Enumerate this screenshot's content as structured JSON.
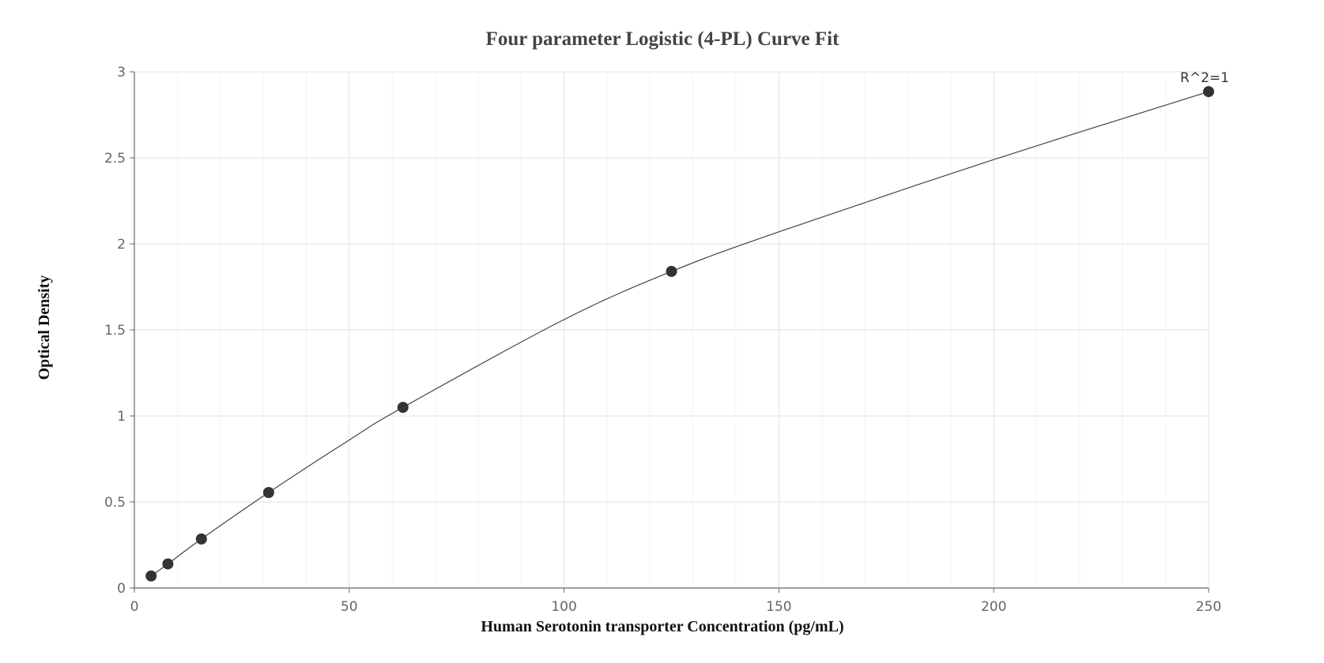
{
  "chart_data": {
    "type": "scatter",
    "title": "Four parameter Logistic (4-PL) Curve Fit",
    "xlabel": "Human Serotonin transporter Concentration (pg/mL)",
    "ylabel": "Optical Density",
    "xlim": [
      0,
      250
    ],
    "ylim": [
      0,
      3
    ],
    "x_ticks": [
      0,
      50,
      100,
      150,
      200,
      250
    ],
    "y_ticks": [
      0,
      0.5,
      1,
      1.5,
      2,
      2.5,
      3
    ],
    "x_tick_labels": [
      "0",
      "50",
      "100",
      "150",
      "200",
      "250"
    ],
    "y_tick_labels": [
      "0",
      "0.5",
      "1",
      "1.5",
      "2",
      "2.5",
      "3"
    ],
    "grid": true,
    "legend": "none",
    "points": {
      "x": [
        3.9,
        7.8,
        15.6,
        31.25,
        62.5,
        125,
        250
      ],
      "y": [
        0.07,
        0.14,
        0.285,
        0.555,
        1.05,
        1.84,
        2.885
      ]
    },
    "fit_curve": {
      "model": "4-PL",
      "x": [
        3.9,
        7.8,
        15.6,
        31.25,
        50,
        62.5,
        100,
        125,
        150,
        200,
        250
      ],
      "y": [
        0.07,
        0.14,
        0.285,
        0.555,
        0.86,
        1.05,
        1.56,
        1.84,
        2.07,
        2.49,
        2.885
      ]
    },
    "annotation": "R^2=1",
    "colors": {
      "points": "#333333",
      "curve": "#444444",
      "major_grid": "#e3e6ee",
      "minor_grid": "#f3f4f8",
      "axis": "#666666"
    }
  }
}
